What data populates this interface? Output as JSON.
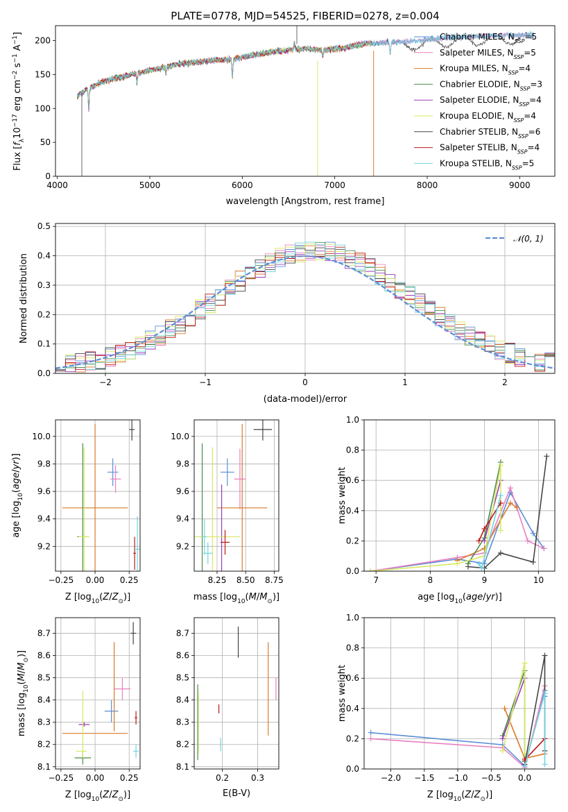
{
  "figure_title": "PLATE=0778, MJD=54525, FIBERID=0278, z=0.004",
  "colors": {
    "Chabrier MILES": "#5b8ed6",
    "Salpeter MILES": "#e880c0",
    "Kroupa MILES": "#d87a2a",
    "Chabrier ELODIE": "#4a8a4a",
    "Salpeter ELODIE": "#9a3ab8",
    "Kroupa ELODIE": "#d8e860",
    "Chabrier STELIB": "#444444",
    "Salpeter STELIB": "#b81818",
    "Kroupa STELIB": "#70d4e0",
    "normal": "#5b8ed6",
    "grid": "#b0b0b0"
  },
  "chart_data": [
    {
      "id": "spectrum",
      "type": "line",
      "title": "PLATE=0778, MJD=54525, FIBERID=0278, z=0.004",
      "xlabel": "wavelength [Angstrom, rest frame]",
      "ylabel": "Flux [f_λ 10^{-17} erg cm^{-2} s^{-1} A^{-1}]",
      "xlim": [
        3980,
        9380
      ],
      "ylim": [
        0,
        222
      ],
      "xticks": [
        "4000",
        "5000",
        "6000",
        "7000",
        "8000",
        "9000"
      ],
      "yticks": [
        "0",
        "50",
        "100",
        "150",
        "200"
      ],
      "grid": false,
      "legend_position": "top-right",
      "continuum_anchors": {
        "wavelength": [
          4210,
          4320,
          4500,
          4800,
          5000,
          5300,
          5600,
          5900,
          6100,
          6300,
          6500,
          6700,
          6900,
          7100,
          7300,
          7500,
          7700,
          7900,
          8100,
          8300,
          8500,
          8700,
          8900,
          9100
        ],
        "flux": [
          118,
          128,
          140,
          150,
          156,
          165,
          170,
          173,
          178,
          183,
          186,
          188,
          186,
          189,
          195,
          197,
          198,
          200,
          203,
          205,
          206,
          207,
          208,
          209
        ]
      },
      "legend": [
        {
          "label": "Chabrier MILES, N_SSP=5",
          "text": "Chabrier MILES, N",
          "sub": "SSP",
          "tail": "=5"
        },
        {
          "label": "Salpeter MILES, N_SSP=5",
          "text": "Salpeter MILES, N",
          "sub": "SSP",
          "tail": "=5"
        },
        {
          "label": "Kroupa MILES, N_SSP=4",
          "text": "Kroupa MILES, N",
          "sub": "SSP",
          "tail": "=4"
        },
        {
          "label": "Chabrier ELODIE, N_SSP=3",
          "text": "Chabrier ELODIE, N",
          "sub": "SSP",
          "tail": "=3"
        },
        {
          "label": "Salpeter ELODIE, N_SSP=4",
          "text": "Salpeter ELODIE, N",
          "sub": "SSP",
          "tail": "=4"
        },
        {
          "label": "Kroupa ELODIE, N_SSP=4",
          "text": "Kroupa ELODIE, N",
          "sub": "SSP",
          "tail": "=4"
        },
        {
          "label": "Chabrier STELIB, N_SSP=6",
          "text": "Chabrier STELIB, N",
          "sub": "SSP",
          "tail": "=6"
        },
        {
          "label": "Salpeter STELIB, N_SSP=4",
          "text": "Salpeter STELIB, N",
          "sub": "SSP",
          "tail": "=4"
        },
        {
          "label": "Kroupa STELIB, N_SSP=5",
          "text": "Kroupa STELIB, N",
          "sub": "SSP",
          "tail": "=5"
        }
      ]
    },
    {
      "id": "residuals",
      "type": "histogram",
      "xlabel": "(data-model)/error",
      "ylabel": "Normed distribution",
      "xlim": [
        -2.5,
        2.5
      ],
      "ylim": [
        0,
        0.51
      ],
      "xticks": [
        "−2",
        "−1",
        "0",
        "1",
        "2"
      ],
      "yticks": [
        "0.0",
        "0.1",
        "0.2",
        "0.3",
        "0.4",
        "0.5"
      ],
      "bin_width": 0.1,
      "grid": true,
      "legend_position": "top-right",
      "legend_label": "𝒩(0, 1)",
      "reference_curve": "normal pdf, mean 0, sigma 1"
    },
    {
      "id": "age-vs-Z",
      "type": "errorbar",
      "xlabel": "Z [log10(Z/Z⊙)]",
      "ylabel": "age [log10(age/yr)]",
      "xlim": [
        -0.29,
        0.33
      ],
      "ylim": [
        9.02,
        10.12
      ],
      "xticks": [
        "−0.25",
        "0.00",
        "0.25"
      ],
      "yticks": [
        "9.2",
        "9.4",
        "9.6",
        "9.8",
        "10.0"
      ],
      "grid": true,
      "points": [
        {
          "model": "Chabrier MILES",
          "x": 0.13,
          "xerr": 0.04,
          "y": 9.74,
          "yerr": 0.1
        },
        {
          "model": "Salpeter MILES",
          "x": 0.15,
          "xerr": 0.04,
          "y": 9.69,
          "yerr": 0.1
        },
        {
          "model": "Kroupa MILES",
          "x": 0.0,
          "xerr": 0.24,
          "y": 9.48,
          "yerr": 0.61
        },
        {
          "model": "Chabrier ELODIE",
          "x": -0.09,
          "xerr": 0.04,
          "y": 9.27,
          "yerr": 0.68
        },
        {
          "model": "Kroupa ELODIE",
          "x": -0.08,
          "xerr": 0.04,
          "y": 9.27,
          "yerr": 0.65
        },
        {
          "model": "Chabrier STELIB",
          "x": 0.27,
          "xerr": 0.02,
          "y": 10.05,
          "yerr": 0.08
        },
        {
          "model": "Salpeter STELIB",
          "x": 0.29,
          "xerr": 0.01,
          "y": 9.15,
          "yerr": 0.12
        },
        {
          "model": "Kroupa STELIB",
          "x": 0.31,
          "xerr": 0.02,
          "y": 9.18,
          "yerr": 0.24
        }
      ]
    },
    {
      "id": "age-vs-mass",
      "type": "errorbar",
      "xlabel": "mass [log10(M/M⊙)]",
      "ylabel": "",
      "xlim": [
        8.05,
        8.79
      ],
      "ylim": [
        9.02,
        10.12
      ],
      "xticks": [
        "8.25",
        "8.50",
        "8.75"
      ],
      "yticks": [
        "9.2",
        "9.4",
        "9.6",
        "9.8",
        "10.0"
      ],
      "grid": true,
      "points": [
        {
          "model": "Chabrier MILES",
          "x": 8.34,
          "xerr": 0.06,
          "y": 9.74,
          "yerr": 0.1
        },
        {
          "model": "Salpeter MILES",
          "x": 8.45,
          "xerr": 0.05,
          "y": 9.69,
          "yerr": 0.22
        },
        {
          "model": "Kroupa MILES",
          "x": 8.47,
          "xerr": 0.22,
          "y": 9.48,
          "yerr": 0.61
        },
        {
          "model": "Chabrier ELODIE",
          "x": 8.12,
          "xerr": 0.02,
          "y": 9.27,
          "yerr": 0.68
        },
        {
          "model": "Salpeter ELODIE",
          "x": 8.29,
          "xerr": 0.01,
          "y": 9.27,
          "yerr": 0.38
        },
        {
          "model": "Kroupa ELODIE",
          "x": 8.21,
          "xerr": 0.24,
          "y": 9.27,
          "yerr": 0.65
        },
        {
          "model": "Chabrier STELIB",
          "x": 8.65,
          "xerr": 0.08,
          "y": 10.05,
          "yerr": 0.08
        },
        {
          "model": "Salpeter STELIB",
          "x": 8.32,
          "xerr": 0.04,
          "y": 9.23,
          "yerr": 0.09
        },
        {
          "model": "Kroupa STELIB",
          "x": 8.17,
          "xerr": 0.04,
          "y": 9.15,
          "yerr": 0.08
        },
        {
          "model": "Kroupa STELIB",
          "x": 8.14,
          "xerr": 0.02,
          "y": 9.27,
          "yerr": 0.13
        }
      ]
    },
    {
      "id": "weight-vs-age",
      "type": "line",
      "xlabel": "age [log10(age/yr)]",
      "ylabel": "mass weight",
      "xlim": [
        6.78,
        10.3
      ],
      "ylim": [
        0,
        1
      ],
      "xticks": [
        "7",
        "8",
        "9",
        "10"
      ],
      "yticks": [
        "0.0",
        "0.2",
        "0.4",
        "0.6",
        "0.8",
        "1.0"
      ],
      "grid": true,
      "series": [
        {
          "model": "Chabrier MILES",
          "x": [
            6.9,
            8.5,
            9.0,
            9.48,
            9.9,
            10.1
          ],
          "y": [
            0.0,
            0.08,
            0.05,
            0.52,
            0.25,
            0.15
          ]
        },
        {
          "model": "Salpeter MILES",
          "x": [
            6.9,
            8.5,
            9.0,
            9.48,
            9.8,
            10.1
          ],
          "y": [
            0.0,
            0.09,
            0.12,
            0.55,
            0.2,
            0.15
          ]
        },
        {
          "model": "Kroupa MILES",
          "x": [
            8.5,
            9.0,
            9.48,
            9.6
          ],
          "y": [
            0.07,
            0.15,
            0.45,
            0.42
          ]
        },
        {
          "model": "Chabrier ELODIE",
          "x": [
            8.7,
            9.0,
            9.3
          ],
          "y": [
            0.05,
            0.22,
            0.72
          ]
        },
        {
          "model": "Salpeter ELODIE",
          "x": [
            9.0,
            9.3
          ],
          "y": [
            0.2,
            0.6
          ]
        },
        {
          "model": "Kroupa ELODIE",
          "x": [
            6.9,
            8.5,
            9.0,
            9.3,
            9.3
          ],
          "y": [
            0.0,
            0.05,
            0.1,
            0.7,
            0.27
          ]
        },
        {
          "model": "Chabrier STELIB",
          "x": [
            8.7,
            9.0,
            9.3,
            9.9,
            10.15
          ],
          "y": [
            0.03,
            0.02,
            0.12,
            0.06,
            0.76
          ]
        },
        {
          "model": "Salpeter STELIB",
          "x": [
            8.9,
            9.0,
            9.3
          ],
          "y": [
            0.2,
            0.28,
            0.45
          ]
        },
        {
          "model": "Kroupa STELIB",
          "x": [
            8.9,
            8.95,
            9.3
          ],
          "y": [
            0.05,
            0.02,
            0.5
          ]
        }
      ]
    },
    {
      "id": "mass-vs-Z",
      "type": "errorbar",
      "xlabel": "Z [log10(Z/Z⊙)]",
      "ylabel": "mass [log10(M/M⊙)]",
      "xlim": [
        -0.29,
        0.33
      ],
      "ylim": [
        8.09,
        8.77
      ],
      "xticks": [
        "−0.25",
        "0.00",
        "0.25"
      ],
      "yticks": [
        "8.1",
        "8.2",
        "8.3",
        "8.4",
        "8.5",
        "8.6",
        "8.7"
      ],
      "grid": true,
      "points": [
        {
          "model": "Chabrier MILES",
          "x": 0.12,
          "xerr": 0.05,
          "y": 8.35,
          "yerr": 0.05
        },
        {
          "model": "Salpeter MILES",
          "x": 0.2,
          "xerr": 0.06,
          "y": 8.45,
          "yerr": 0.05
        },
        {
          "model": "Kroupa MILES",
          "x": 0.0,
          "xerr": 0.24,
          "y": 8.25,
          "yerr": 0.0
        },
        {
          "model": "Kroupa MILES",
          "x": 0.14,
          "xerr": 0.0,
          "y": 8.46,
          "yerr": 0.2
        },
        {
          "model": "Chabrier ELODIE",
          "x": -0.09,
          "xerr": 0.06,
          "y": 8.14,
          "yerr": 0.03
        },
        {
          "model": "Salpeter ELODIE",
          "x": -0.08,
          "xerr": 0.04,
          "y": 8.29,
          "yerr": 0.01
        },
        {
          "model": "Kroupa ELODIE",
          "x": -0.1,
          "xerr": 0.04,
          "y": 8.17,
          "yerr": 0.0
        },
        {
          "model": "Kroupa ELODIE",
          "x": -0.09,
          "xerr": 0.0,
          "y": 8.29,
          "yerr": 0.15
        },
        {
          "model": "Chabrier STELIB",
          "x": 0.28,
          "xerr": 0.02,
          "y": 8.7,
          "yerr": 0.05
        },
        {
          "model": "Salpeter STELIB",
          "x": 0.3,
          "xerr": 0.01,
          "y": 8.32,
          "yerr": 0.03
        },
        {
          "model": "Kroupa STELIB",
          "x": 0.3,
          "xerr": 0.02,
          "y": 8.17,
          "yerr": 0.03
        }
      ]
    },
    {
      "id": "mass-vs-EBV",
      "type": "errorbar",
      "xlabel": "E(B-V)",
      "ylabel": "",
      "xlim": [
        0.12,
        0.36
      ],
      "ylim": [
        8.09,
        8.77
      ],
      "xticks": [
        "0.2",
        "0.3"
      ],
      "yticks": [
        "8.1",
        "8.2",
        "8.3",
        "8.4",
        "8.5",
        "8.6",
        "8.7"
      ],
      "grid": true,
      "points": [
        {
          "model": "Chabrier ELODIE",
          "x": 0.13,
          "xerr": 0,
          "y": 8.3,
          "yerr": 0.17
        },
        {
          "model": "Kroupa ELODIE",
          "x": 0.132,
          "xerr": 0,
          "y": 8.3,
          "yerr": 0.14
        },
        {
          "model": "Kroupa STELIB",
          "x": 0.195,
          "xerr": 0,
          "y": 8.2,
          "yerr": 0.03
        },
        {
          "model": "Salpeter STELIB",
          "x": 0.19,
          "xerr": 0,
          "y": 8.36,
          "yerr": 0.02
        },
        {
          "model": "Chabrier STELIB",
          "x": 0.245,
          "xerr": 0,
          "y": 8.66,
          "yerr": 0.07
        },
        {
          "model": "Kroupa MILES",
          "x": 0.33,
          "xerr": 0,
          "y": 8.45,
          "yerr": 0.21
        },
        {
          "model": "Salpeter MILES",
          "x": 0.352,
          "xerr": 0,
          "y": 8.45,
          "yerr": 0.05
        }
      ]
    },
    {
      "id": "weight-vs-Z",
      "type": "line",
      "xlabel": "Z [log10(Z/Z⊙)]",
      "ylabel": "mass weight",
      "xlim": [
        -2.4,
        0.45
      ],
      "ylim": [
        0,
        1
      ],
      "xticks": [
        "−2.0",
        "−1.5",
        "−1.0",
        "−0.5",
        "0.0"
      ],
      "yticks": [
        "0.0",
        "0.2",
        "0.4",
        "0.6",
        "0.8",
        "1.0"
      ],
      "grid": true,
      "series": [
        {
          "model": "Chabrier MILES",
          "x": [
            -2.3,
            -0.33,
            0.0,
            0.3,
            0.3
          ],
          "y": [
            0.24,
            0.16,
            0.02,
            0.52,
            0.48
          ]
        },
        {
          "model": "Salpeter MILES",
          "x": [
            -2.3,
            -0.33,
            0.0,
            0.3
          ],
          "y": [
            0.2,
            0.14,
            0.01,
            0.55
          ]
        },
        {
          "model": "Kroupa MILES",
          "x": [
            -0.3,
            0.0,
            0.3
          ],
          "y": [
            0.4,
            0.07,
            0.1
          ]
        },
        {
          "model": "Chabrier ELODIE",
          "x": [
            -0.33,
            0.0,
            0.0
          ],
          "y": [
            0.22,
            0.65,
            0.05
          ]
        },
        {
          "model": "Salpeter ELODIE",
          "x": [
            -0.33,
            0.0
          ],
          "y": [
            0.2,
            0.6
          ]
        },
        {
          "model": "Kroupa ELODIE",
          "x": [
            -0.33,
            0.0,
            0.0
          ],
          "y": [
            0.12,
            0.7,
            0.1
          ]
        },
        {
          "model": "Chabrier STELIB",
          "x": [
            0.0,
            0.3,
            0.3
          ],
          "y": [
            0.03,
            0.75,
            0.12
          ]
        },
        {
          "model": "Salpeter STELIB",
          "x": [
            0.0,
            0.3
          ],
          "y": [
            0.06,
            0.2
          ]
        },
        {
          "model": "Kroupa STELIB",
          "x": [
            0.0,
            0.3,
            0.3
          ],
          "y": [
            0.02,
            0.5,
            0.03
          ]
        }
      ]
    }
  ]
}
